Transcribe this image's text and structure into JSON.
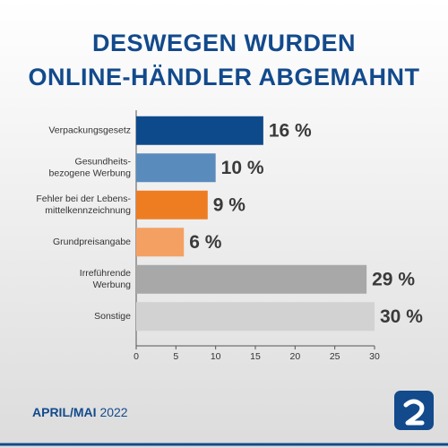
{
  "chart_data": {
    "type": "hbar",
    "title": [
      "DESWEGEN WURDEN",
      "ONLINE-HÄNDLER ABGEMAHNT"
    ],
    "categories": [
      [
        "Verpackungsgesetz"
      ],
      [
        "Gesundheits-",
        "bezogene Werbung"
      ],
      [
        "Fehler bei der Lebens-",
        "mittelkennzeichnung"
      ],
      [
        "Grundpreisangabe"
      ],
      [
        "Irreführende",
        "Werbung"
      ],
      [
        "Sonstige"
      ]
    ],
    "values": [
      16,
      10,
      9,
      6,
      29,
      30
    ],
    "value_labels": [
      "16 %",
      "10 %",
      "9 %",
      "6 %",
      "29 %",
      "30 %"
    ],
    "colors": [
      "#0d4a8b",
      "#5a8bbd",
      "#ee7d22",
      "#f4a063",
      "#a8a8a8",
      "#d2d2d2"
    ],
    "xlim": [
      0,
      30
    ],
    "xticks": [
      0,
      5,
      10,
      15,
      20,
      25,
      30
    ],
    "footer": {
      "period": "APRIL/MAI",
      "year": "2022"
    }
  }
}
